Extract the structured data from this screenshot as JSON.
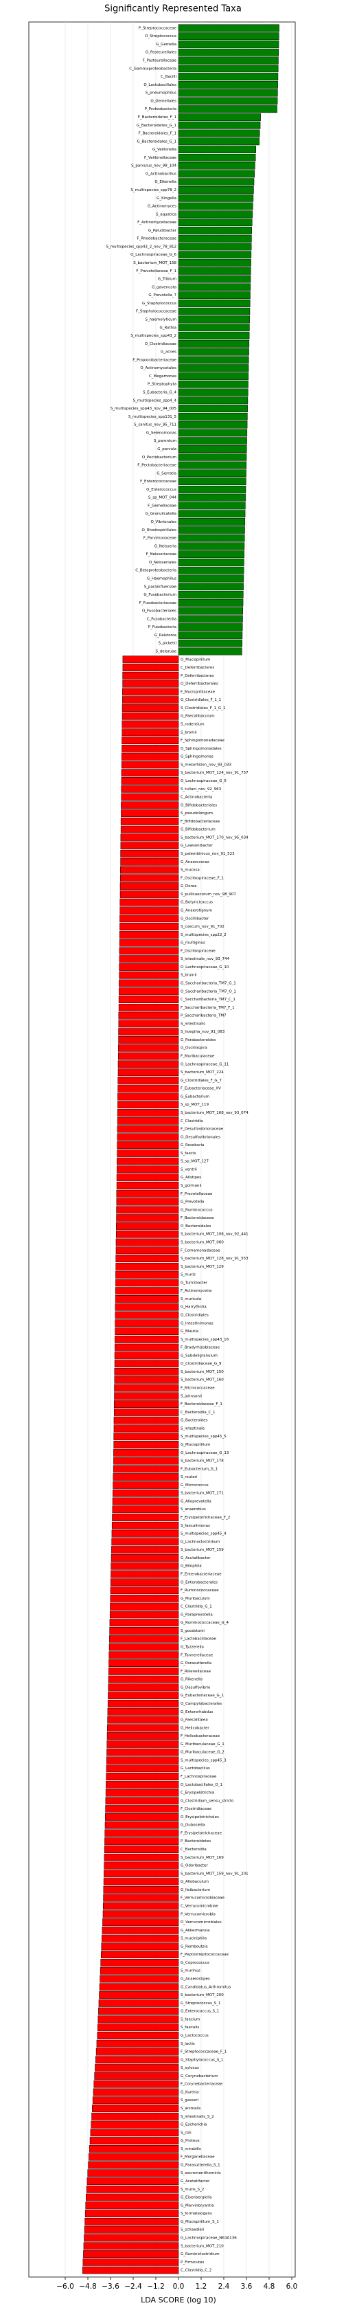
{
  "chart_data": {
    "type": "barh",
    "title": "Significantly Represented Taxa",
    "xlabel": "LDA SCORE (log 10)",
    "xlim": [
      -6,
      6
    ],
    "xticks": [
      {
        "value": -6,
        "label": "−6.0"
      },
      {
        "value": -4.8,
        "label": "−4.8"
      },
      {
        "value": -3.6,
        "label": "−3.6"
      },
      {
        "value": -2.4,
        "label": "−2.4"
      },
      {
        "value": -1.2,
        "label": "−1.2"
      },
      {
        "value": 0,
        "label": "0.0"
      },
      {
        "value": 1.2,
        "label": "1.2"
      },
      {
        "value": 2.4,
        "label": "2.4"
      },
      {
        "value": 3.6,
        "label": "3.6"
      },
      {
        "value": 4.8,
        "label": "4.8"
      },
      {
        "value": 6,
        "label": "6.0"
      }
    ],
    "grid": true,
    "series": [
      {
        "color": "#008000",
        "categories": [
          "P_Streptococcaceae",
          "O_Streptococcus",
          "G_Gemella",
          "O_Pasteurellales",
          "F_Pasteurellaceae",
          "C_Gammaproteobacteria",
          "C_Bacilli",
          "O_Lactobacillales",
          "S_pneumophilus",
          "O_Gemellales",
          "P_Proteobacteria",
          "F_Bacteroidetes_F_1",
          "G_Bacteroidetes_G_1",
          "F_Bacteroidales_F_1",
          "G_Bacteroidales_G_1",
          "G_Veillonella",
          "F_Veillonellaceae",
          "S_parvulus_nov_98_104",
          "G_Actinobacillus",
          "G_Eikenella",
          "S_multispecies_spp78_2",
          "G_Kingella",
          "G_Actinomyces",
          "S_aquatica",
          "F_Actinomycetaceae",
          "G_Paludibacter",
          "F_Rhodobacteraceae",
          "S_multispecies_spp43_2_nov_78_912",
          "O_Lachnospiraceae_G_6",
          "S_bacterium_MOT_158",
          "F_Prevotellaceae_F_1",
          "G_Tribium",
          "G_gavenusta",
          "G_Prevotella_7",
          "G_Staphylococcus",
          "F_Staphylococcaceae",
          "S_haemolyticum",
          "G_Rothia",
          "S_multispecies_spp43_2",
          "O_Clostridiaceae",
          "G_acnes",
          "F_Propionibacteriaceae",
          "O_Actinomycetales",
          "C_Megamonas",
          "P_Streptophyta",
          "S_Eubacteria_G_4",
          "S_multispecies_spp4_4",
          "S_multispecies_spp43_nov_94_005",
          "S_multispecies_spp131_5",
          "S_sanitus_nov_95_711",
          "G_Selenomonas",
          "S_parentum",
          "G_parvula",
          "O_Pectobacterium",
          "F_Pectobacteriaceae",
          "G_Serratia",
          "F_Enterococcaceae",
          "O_Enterococcus",
          "S_sp_MOT_044",
          "F_Gemellaceae",
          "G_Granulicatella",
          "O_Vibrionales",
          "O_Rhodospirillales",
          "F_Parvimonaceae",
          "G_Neisseria",
          "F_Neisseriaceae",
          "O_Neisseriales",
          "C_Betaproteobacteria",
          "G_Haemophilus",
          "S_parainfluenzae",
          "G_Fusobacterium",
          "F_Fusobacteriaceae",
          "O_Fusobacteriales",
          "C_Fusobacteriia",
          "P_Fusobacteria",
          "G_Ralstonia",
          "S_picketti",
          "S_delaruae"
        ],
        "values": [
          5.33,
          5.32,
          5.31,
          5.3,
          5.29,
          5.28,
          5.27,
          5.26,
          5.25,
          5.24,
          5.22,
          4.35,
          4.33,
          4.3,
          4.28,
          4.1,
          4.08,
          4.05,
          4.03,
          4.0,
          3.98,
          3.96,
          3.94,
          3.92,
          3.9,
          3.88,
          3.87,
          3.86,
          3.85,
          3.84,
          3.83,
          3.82,
          3.81,
          3.8,
          3.79,
          3.78,
          3.77,
          3.76,
          3.75,
          3.74,
          3.73,
          3.72,
          3.71,
          3.7,
          3.69,
          3.68,
          3.67,
          3.66,
          3.65,
          3.64,
          3.63,
          3.62,
          3.61,
          3.6,
          3.59,
          3.58,
          3.57,
          3.56,
          3.55,
          3.54,
          3.53,
          3.52,
          3.51,
          3.5,
          3.49,
          3.48,
          3.47,
          3.46,
          3.45,
          3.44,
          3.43,
          3.42,
          3.41,
          3.4,
          3.39,
          3.38,
          3.37,
          3.36
        ]
      },
      {
        "color": "#ff0000",
        "categories": [
          "O_Mucispirillum",
          "C_Deferribacteres",
          "P_Deferribacteres",
          "O_Deferribacterales",
          "F_Mucispirillaceae",
          "G_Clostridiales_F_1_1",
          "S_Clostridiales_F_1_G_1",
          "G_Faecalibaculum",
          "S_rodentium",
          "S_bromii",
          "F_Sphingomonadaceae",
          "O_Sphingomonadales",
          "G_Sphingomonas",
          "S_mesorhizon_nov_93_033",
          "S_bacterium_MOT_124_nov_91_757",
          "O_Lachnospiraceae_G_5",
          "S_tullani_nov_92_963",
          "C_Actinobacteria",
          "O_Bifidobacteriales",
          "S_pseudolongum",
          "F_Bifidobacteriaceae",
          "G_Bifidobacterium",
          "S_bacterium_MOT_170_nov_95_034",
          "G_Lawsonibacter",
          "S_palembinicus_nov_91_523",
          "G_Anaerovorax",
          "S_mucosa",
          "F_Oscillospiraceae_F_1",
          "G_Dorea",
          "S_pullicaecorum_nov_98_907",
          "G_Butyricicoccus",
          "G_Anaerotignum",
          "G_Oscillibacter",
          "S_coecum_nov_91_702",
          "S_multispecies_spp22_2",
          "G_multiginus",
          "F_Oscillospiraceae",
          "S_intestinale_nov_93_744",
          "O_Lachnospiraceae_G_10",
          "S_bruinii",
          "G_Saccharibacteria_TM7_G_1",
          "O_Saccharibacteria_TM7_O_1",
          "C_Saccharibacteria_TM7_C_1",
          "F_Saccharibacteria_TM7_F_1",
          "P_Saccharibacteria_TM7",
          "S_intestinalis",
          "S_hoegiha_nov_91_083",
          "G_Parabacteroides",
          "G_Oscillospira",
          "F_Muribaculaceae",
          "O_Lachnospiraceae_G_11",
          "S_bacterium_MOT_224",
          "G_Clostridiales_F_G_7",
          "F_Eubacteriaceae_XV",
          "G_Eubacterium",
          "S_sp_MOT_119",
          "S_bacterium_MOT_168_nov_93_074",
          "C_Clostridia",
          "F_Desulfovibrionaceae",
          "O_Desulfovibrionales",
          "G_Roseburia",
          "S_faecis",
          "S_sp_MOT_127",
          "S_ventrii",
          "G_Alistipes",
          "S_gormanii",
          "F_Prevotellaceae",
          "G_Prevotella",
          "G_Ruminococcus",
          "F_Bacteroidaceae",
          "O_Bacteroidales",
          "S_bacterium_MOT_108_nov_92_441",
          "S_bacterium_MOT_060",
          "F_Comamonadaceae",
          "S_bacterium_MOT_128_nov_91_553",
          "S_bacterium_MOT_129",
          "S_muris",
          "G_Turicibacter",
          "F_Actinomycetia",
          "S_muricola",
          "G_Harryflintia",
          "O_Clostridiales",
          "G_Intestinimonas",
          "G_Blautia",
          "S_multispecies_spp43_18",
          "F_Bradyrhizobiaceae",
          "G_Subdoligranulum",
          "O_Clostridiaceae_G_9",
          "S_bacterium_MOT_150",
          "S_bacterium_MOT_160",
          "F_Micrococcaceae",
          "S_johnsonii",
          "F_Bacteroidaceae_F_1",
          "C_Bacteroidia_C_1",
          "G_Bacteroides",
          "S_intestinale",
          "S_multispecies_spp45_5",
          "G_Mucispirillum",
          "O_Lachnospiraceae_G_13",
          "S_bacterium_MOT_178",
          "F_Eubacterium_G_1",
          "S_reuteri",
          "G_Micrococcus",
          "S_bacterium_MOT_171",
          "G_Alloprevotella",
          "S_anaerobius",
          "F_Erysipelotrichaceae_F_2",
          "S_faecalimonas",
          "S_multispecies_spp45_4",
          "G_Lachnoclostridium",
          "S_bacterium_MOT_159",
          "G_Acutalibacter",
          "G_Bilophila",
          "F_Enterobacteriaceae",
          "O_Enterobacterales",
          "F_Ruminococcaceae",
          "G_Muribaculum",
          "C_Clostridia_G_1",
          "G_Paraprevotella",
          "G_Ruminococcaceae_G_4",
          "S_goodstonii",
          "F_Lactobacillaceae",
          "G_Tyzzerella",
          "F_Tannerellaceae",
          "G_Parasutterella",
          "F_Rikenellaceae",
          "G_Rikenella",
          "G_Desulfovibrio",
          "G_Eubacteriaceae_G_1",
          "O_Campylobacterales",
          "G_Enterorhabdus",
          "G_Faecalitalea",
          "G_Helicobacter",
          "F_Helicobacteraceae",
          "G_Muribaculaceae_G_1",
          "G_Muribaculaceae_G_2",
          "S_multispecies_spp45_3",
          "G_Lactobacillus",
          "F_Lachnospiraceae",
          "O_Lactobacillales_O_1",
          "C_Erysipelotrichia",
          "G_Clostridium_sensu_stricto",
          "F_Clostridiaceae",
          "O_Erysipelotrichales",
          "G_Dubosiella",
          "F_Erysipelotrichaceae",
          "P_Bacteroidetes",
          "C_Bacteroidia",
          "S_bacterium_MOT_169",
          "G_Odoribacter",
          "S_bacterium_MOT_159_nov_91_201",
          "G_Allobaculum",
          "G_Ileibacterium",
          "F_Verrucomicrobiaceae",
          "C_Verrucomicrobiae",
          "P_Verrucomicrobia",
          "O_Verrucomicrobiales",
          "G_Akkermansia",
          "S_muciniphila",
          "G_Romboutsia",
          "F_Peptostreptococcaceae",
          "G_Coprococcus",
          "S_murinus",
          "G_Anaerostipes",
          "G_Candidatus_Arthromitus",
          "S_bacterium_MOT_200",
          "G_Streptococcus_S_1",
          "G_Enterococcus_S_1",
          "S_faecium",
          "S_faecalis",
          "G_Lactococcus",
          "S_lactis",
          "F_Streptococcaceae_F_1",
          "G_Staphylococcus_S_1",
          "S_xylosus",
          "G_Corynebacterium",
          "F_Corynebacteriaceae",
          "G_Kurthia",
          "S_gasseri",
          "S_animalis",
          "S_intestinalis_S_2",
          "G_Escherichia",
          "S_coli",
          "G_Proteus",
          "S_mirabilis",
          "F_Morganellaceae",
          "G_Parasutterella_S_1",
          "S_excrementihominis",
          "G_Acetatifactor",
          "S_muris_S_2",
          "G_Eisenbergiella",
          "G_Marvinbryantia",
          "S_formatexigens",
          "G_Mucispirillum_S_1",
          "S_schaedleri",
          "G_Lachnospiraceae_NK4A136",
          "S_bacterium_MOT_210",
          "G_Ruminiclostridium",
          "P_Firmicutes",
          "C_Clostridia_C_2"
        ],
        "values": [
          -2.95,
          -2.95,
          -2.96,
          -2.96,
          -2.97,
          -2.97,
          -2.98,
          -2.98,
          -2.99,
          -2.99,
          -3.0,
          -3.0,
          -3.01,
          -3.01,
          -3.02,
          -3.02,
          -3.03,
          -3.03,
          -3.04,
          -3.04,
          -3.05,
          -3.05,
          -3.06,
          -3.06,
          -3.07,
          -3.07,
          -3.08,
          -3.08,
          -3.09,
          -3.09,
          -3.1,
          -3.1,
          -3.11,
          -3.11,
          -3.12,
          -3.12,
          -3.13,
          -3.13,
          -3.14,
          -3.14,
          -3.15,
          -3.15,
          -3.16,
          -3.16,
          -3.17,
          -3.17,
          -3.18,
          -3.18,
          -3.19,
          -3.19,
          -3.2,
          -3.2,
          -3.21,
          -3.21,
          -3.22,
          -3.22,
          -3.23,
          -3.23,
          -3.24,
          -3.24,
          -3.25,
          -3.25,
          -3.26,
          -3.26,
          -3.27,
          -3.27,
          -3.28,
          -3.28,
          -3.29,
          -3.29,
          -3.3,
          -3.3,
          -3.31,
          -3.31,
          -3.32,
          -3.32,
          -3.33,
          -3.33,
          -3.34,
          -3.34,
          -3.35,
          -3.35,
          -3.36,
          -3.36,
          -3.37,
          -3.37,
          -3.38,
          -3.38,
          -3.39,
          -3.39,
          -3.4,
          -3.4,
          -3.41,
          -3.41,
          -3.42,
          -3.42,
          -3.43,
          -3.43,
          -3.44,
          -3.44,
          -3.45,
          -3.46,
          -3.47,
          -3.48,
          -3.49,
          -3.5,
          -3.51,
          -3.52,
          -3.53,
          -3.54,
          -3.55,
          -3.56,
          -3.57,
          -3.58,
          -3.59,
          -3.6,
          -3.61,
          -3.62,
          -3.63,
          -3.64,
          -3.65,
          -3.66,
          -3.67,
          -3.68,
          -3.69,
          -3.7,
          -3.71,
          -3.72,
          -3.73,
          -3.74,
          -3.75,
          -3.76,
          -3.77,
          -3.78,
          -3.79,
          -3.8,
          -3.81,
          -3.82,
          -3.83,
          -3.84,
          -3.85,
          -3.86,
          -3.87,
          -3.88,
          -3.89,
          -3.9,
          -3.91,
          -3.92,
          -3.93,
          -3.94,
          -3.95,
          -3.96,
          -3.97,
          -3.98,
          -3.99,
          -4.0,
          -4.02,
          -4.04,
          -4.06,
          -4.08,
          -4.1,
          -4.12,
          -4.14,
          -4.16,
          -4.18,
          -4.2,
          -4.22,
          -4.24,
          -4.26,
          -4.28,
          -4.3,
          -4.33,
          -4.36,
          -4.39,
          -4.42,
          -4.45,
          -4.48,
          -4.51,
          -4.54,
          -4.57,
          -4.6,
          -4.63,
          -4.66,
          -4.69,
          -4.72,
          -4.75,
          -4.78,
          -4.81,
          -4.84,
          -4.87,
          -4.9,
          -4.92,
          -4.94,
          -4.96,
          -4.98,
          -5.0,
          -5.02,
          -5.04,
          -5.06,
          -5.08
        ]
      }
    ]
  }
}
